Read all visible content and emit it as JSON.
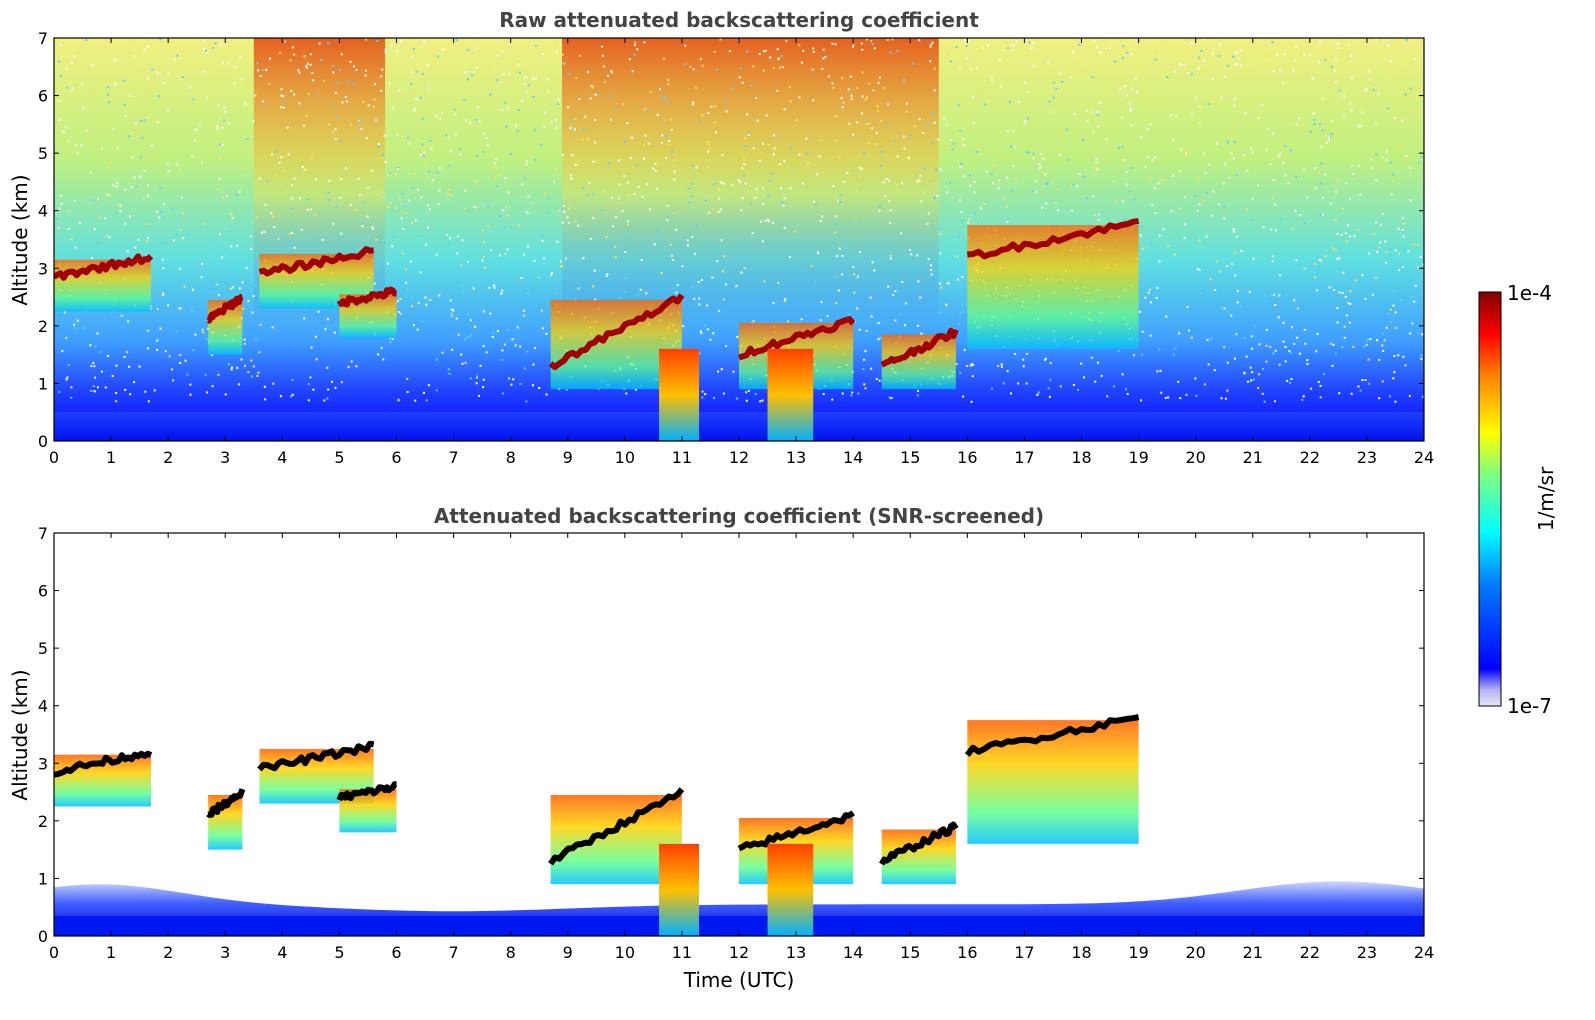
{
  "chart_data": [
    {
      "type": "heatmap",
      "title": "Raw attenuated backscattering coefficient",
      "xlabel": "",
      "ylabel": "Altitude (km)",
      "xlim": [
        0,
        24
      ],
      "ylim": [
        0,
        7
      ],
      "x_ticks": [
        "0",
        "1",
        "2",
        "3",
        "4",
        "5",
        "6",
        "7",
        "8",
        "9",
        "10",
        "11",
        "12",
        "13",
        "14",
        "15",
        "16",
        "17",
        "18",
        "19",
        "20",
        "21",
        "22",
        "23",
        "24"
      ],
      "y_ticks": [
        "0",
        "1",
        "2",
        "3",
        "4",
        "5",
        "6",
        "7"
      ],
      "features": {
        "cloud_layers": [
          {
            "t_start": 0.0,
            "t_end": 1.7,
            "alt_base": 2.85,
            "alt_top": 3.2
          },
          {
            "t_start": 3.6,
            "t_end": 5.6,
            "alt_base": 2.9,
            "alt_top": 3.3
          },
          {
            "t_start": 5.0,
            "t_end": 6.0,
            "alt_base": 2.4,
            "alt_top": 2.6
          },
          {
            "t_start": 2.7,
            "t_end": 3.3,
            "alt_base": 2.1,
            "alt_top": 2.5
          },
          {
            "t_start": 8.7,
            "t_end": 11.0,
            "alt_base": 1.3,
            "alt_top": 2.5
          },
          {
            "t_start": 12.0,
            "t_end": 14.0,
            "alt_base": 1.5,
            "alt_top": 2.1
          },
          {
            "t_start": 14.5,
            "t_end": 15.8,
            "alt_base": 1.3,
            "alt_top": 1.9
          },
          {
            "t_start": 16.0,
            "t_end": 19.0,
            "alt_base": 3.2,
            "alt_top": 3.8
          }
        ],
        "boundary_layer_top_km": 0.5,
        "noisy_periods": [
          [
            3.5,
            5.8
          ],
          [
            8.9,
            15.5
          ]
        ]
      }
    },
    {
      "type": "heatmap",
      "title": "Attenuated backscattering coefficient (SNR-screened)",
      "xlabel": "Time (UTC)",
      "ylabel": "Altitude (km)",
      "xlim": [
        0,
        24
      ],
      "ylim": [
        0,
        7
      ],
      "x_ticks": [
        "0",
        "1",
        "2",
        "3",
        "4",
        "5",
        "6",
        "7",
        "8",
        "9",
        "10",
        "11",
        "12",
        "13",
        "14",
        "15",
        "16",
        "17",
        "18",
        "19",
        "20",
        "21",
        "22",
        "23",
        "24"
      ],
      "y_ticks": [
        "0",
        "1",
        "2",
        "3",
        "4",
        "5",
        "6",
        "7"
      ],
      "screened": true
    }
  ],
  "colorbar": {
    "label": "1/m/sr",
    "min_label": "1e-7",
    "max_label": "1e-4",
    "scale": "log",
    "colormap": [
      "#e8e8f8",
      "#0000ff",
      "#0080ff",
      "#00ffff",
      "#80ff80",
      "#ffff00",
      "#ff8000",
      "#ff0000",
      "#800000"
    ]
  },
  "colors": {
    "title": "#444444",
    "cloud_top_screened": "#000000",
    "axis": "#000000"
  }
}
